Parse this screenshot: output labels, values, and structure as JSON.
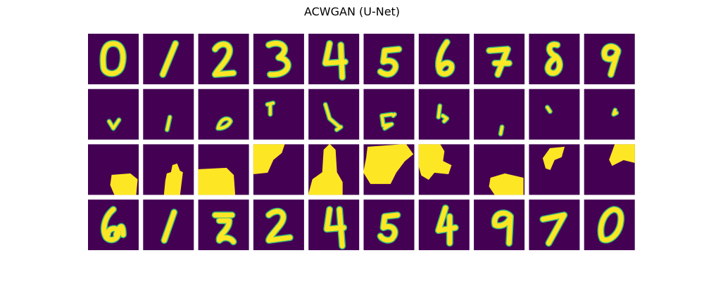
{
  "title": "ACWGAN (U-Net)"
}
